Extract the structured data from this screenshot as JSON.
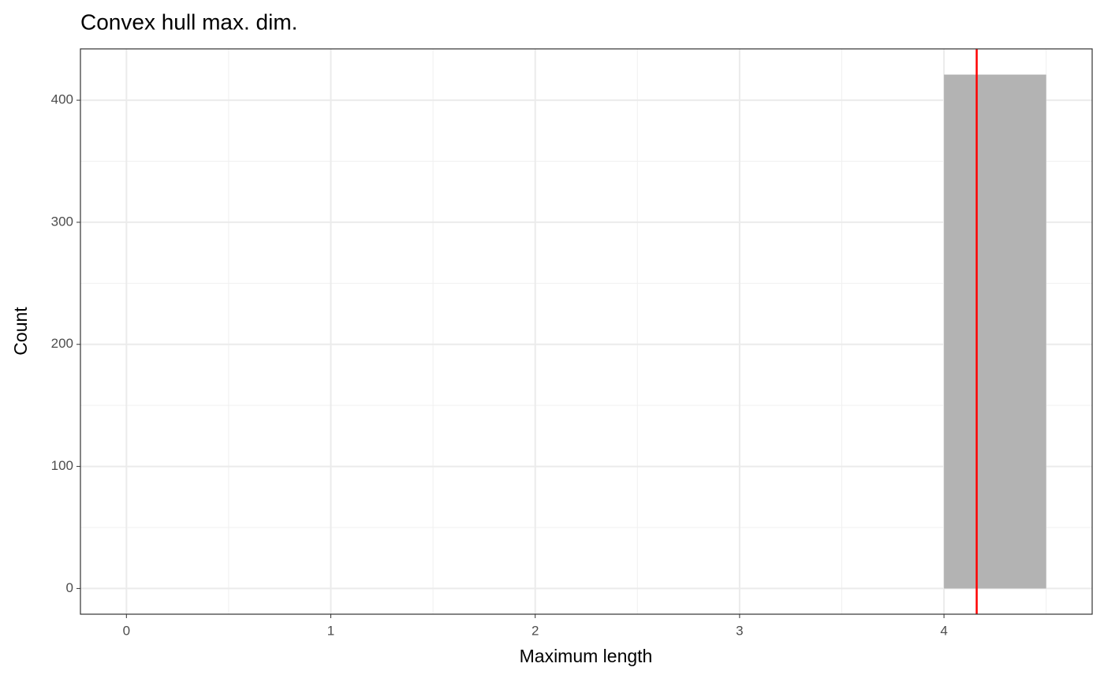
{
  "chart_data": {
    "type": "histogram",
    "title": "Convex hull max. dim.",
    "x_label": "Maximum length",
    "y_label": "Count",
    "bins": [
      0,
      0.5,
      1,
      1.5,
      2,
      2.5,
      3,
      3.5,
      4,
      4.5
    ],
    "values": [
      0,
      0,
      0,
      0,
      0,
      0,
      0,
      0,
      421
    ],
    "color": "#b3b3b3",
    "reference_line": {
      "value": 4.16,
      "color": "#ff0000"
    },
    "xlim": [
      -0.225,
      4.725
    ],
    "xticks": [
      0,
      1,
      2,
      3,
      4
    ],
    "xminor": [
      0.5,
      1.5,
      2.5,
      3.5,
      4.5
    ],
    "ylim": [
      -21.05,
      442.05
    ],
    "yticks": [
      0,
      100,
      200,
      300,
      400
    ],
    "yminor": [
      50,
      150,
      250,
      350
    ],
    "grid": true
  }
}
